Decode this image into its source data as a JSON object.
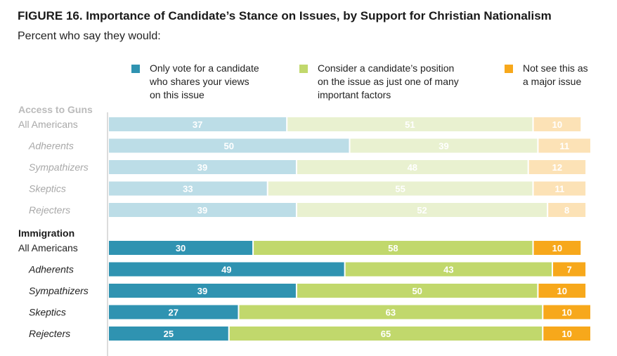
{
  "title": "FIGURE 16. Importance of Candidate’s Stance on Issues, by Support for Christian Nationalism",
  "subtitle": "Percent who say they would:",
  "colors": {
    "series_strong": [
      "#2f93b1",
      "#c1d86c",
      "#f7a81b"
    ],
    "series_faded": [
      "#bcdde7",
      "#e9f1d0",
      "#fce2b6"
    ],
    "group_label_faded": "#bbbbbb",
    "row_label_faded": "#a8a8a8",
    "row_label_strong": "#222222",
    "axis_line": "#d0d0d0"
  },
  "chart_data": {
    "type": "bar",
    "orientation": "horizontal",
    "stacked": true,
    "xlim": [
      0,
      100
    ],
    "legend_position": "top",
    "series": [
      {
        "name": "Only vote for a candidate who shares your views on this issue",
        "legend_lines": [
          "Only vote for a candidate",
          "who shares your views",
          "on this issue"
        ]
      },
      {
        "name": "Consider a candidate’s position on the issue as just one of many important factors",
        "legend_lines": [
          "Consider a candidate’s position",
          "on the issue as just one of many",
          "important factors"
        ]
      },
      {
        "name": "Not see this as a major issue",
        "legend_lines": [
          "Not see this as",
          "a major issue"
        ]
      }
    ],
    "groups": [
      {
        "label": "Access to Guns",
        "faded": true,
        "rows": [
          {
            "label": "All Americans",
            "values": [
              37,
              51,
              10
            ]
          },
          {
            "label": "Adherents",
            "values": [
              50,
              39,
              11
            ]
          },
          {
            "label": "Sympathizers",
            "values": [
              39,
              48,
              12
            ]
          },
          {
            "label": "Skeptics",
            "values": [
              33,
              55,
              11
            ]
          },
          {
            "label": "Rejecters",
            "values": [
              39,
              52,
              8
            ]
          }
        ]
      },
      {
        "label": "Immigration",
        "faded": false,
        "rows": [
          {
            "label": "All Americans",
            "values": [
              30,
              58,
              10
            ]
          },
          {
            "label": "Adherents",
            "values": [
              49,
              43,
              7
            ]
          },
          {
            "label": "Sympathizers",
            "values": [
              39,
              50,
              10
            ]
          },
          {
            "label": "Skeptics",
            "values": [
              27,
              63,
              10
            ]
          },
          {
            "label": "Rejecters",
            "values": [
              25,
              65,
              10
            ]
          }
        ]
      }
    ]
  }
}
